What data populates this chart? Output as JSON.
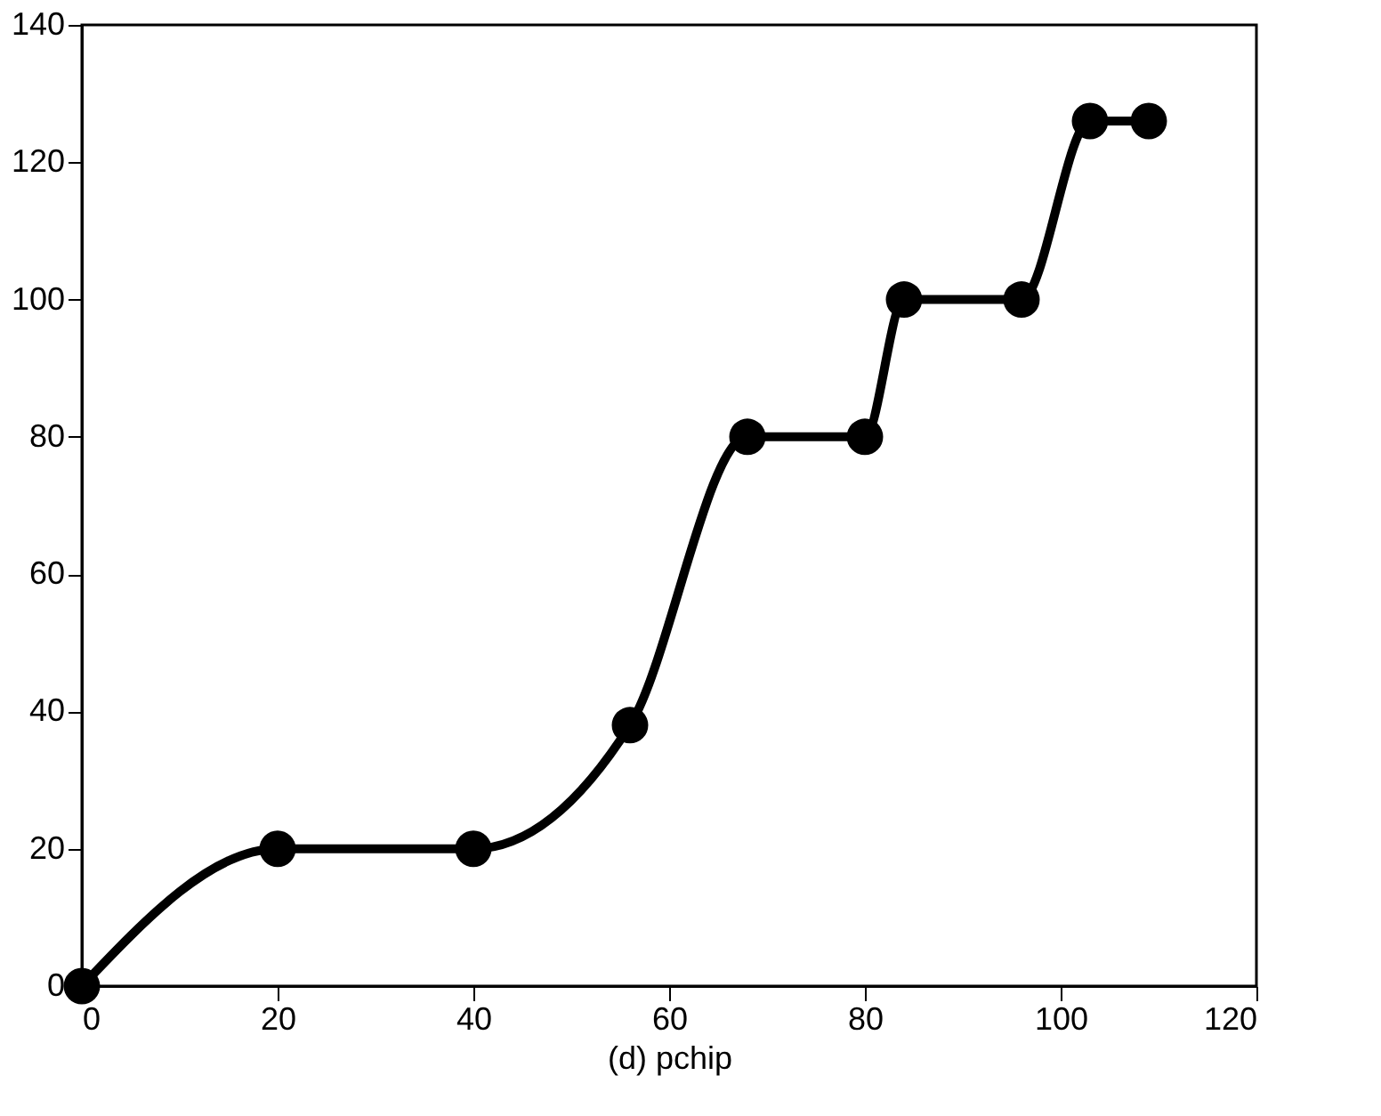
{
  "chart_data": {
    "type": "line",
    "xlabel": "(d) pchip",
    "x": [
      0,
      20,
      40,
      56,
      68,
      80,
      84,
      96,
      103,
      109
    ],
    "series": [
      {
        "color": "#000000",
        "values": [
          0,
          20,
          20,
          38,
          80,
          80,
          100,
          100,
          126,
          126
        ]
      }
    ],
    "xlim": [
      0,
      120
    ],
    "xticks": [
      0,
      20,
      40,
      60,
      80,
      100,
      120
    ],
    "ylim": [
      0,
      140
    ],
    "yticks": [
      0,
      20,
      40,
      60,
      80,
      100,
      120,
      140
    ],
    "marker": "circle",
    "line_style": "solid",
    "grid": false
  }
}
